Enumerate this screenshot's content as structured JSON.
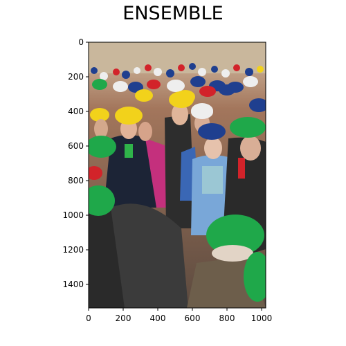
{
  "figure": {
    "title": "ENSEMBLE",
    "image_subject": "crowd of people wearing hard hats (yellow, white, blue, red, green)"
  },
  "axes": {
    "x_ticks": [
      "0",
      "200",
      "400",
      "600",
      "800",
      "1000"
    ],
    "y_ticks": [
      "0",
      "200",
      "400",
      "600",
      "800",
      "1000",
      "1200",
      "1400"
    ],
    "x_range": [
      0,
      1024
    ],
    "y_range": [
      0,
      1536
    ]
  },
  "colors": {
    "hat_yellow": "#f2d21b",
    "hat_white": "#eeeeee",
    "hat_blue": "#1f3f8f",
    "hat_red": "#d2232a",
    "hat_green": "#1fa84a",
    "background": "#b5866a"
  }
}
